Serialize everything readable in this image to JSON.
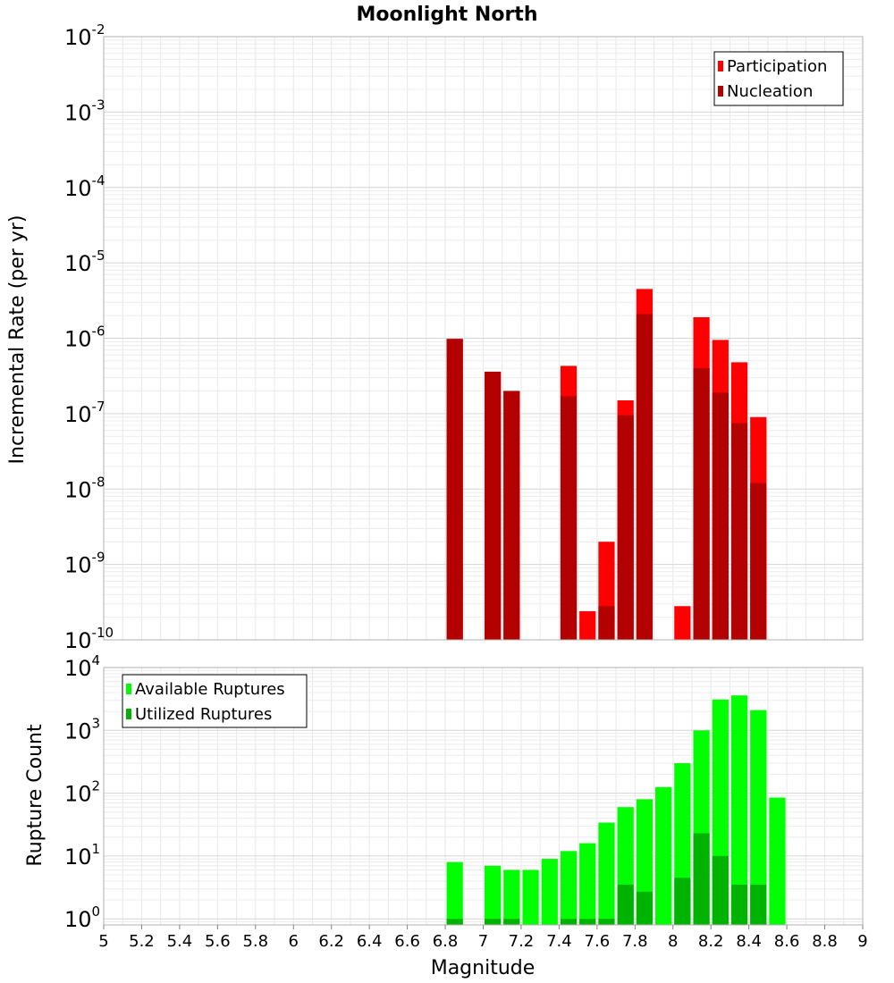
{
  "chart_data": [
    {
      "type": "bar",
      "title": "Moonlight North",
      "ylabel": "Incremental Rate (per yr)",
      "xlabel": "",
      "yscale": "log",
      "ylim": [
        1e-10,
        0.01
      ],
      "xlim": [
        5,
        9
      ],
      "bar_width": 0.1,
      "grid": true,
      "legend_position": "top-right",
      "ytick_exponents": [
        "-10",
        "-9",
        "-8",
        "-7",
        "-6",
        "-5",
        "-4",
        "-3",
        "-2"
      ],
      "ytick_base": "10",
      "series": [
        {
          "name": "Participation",
          "color": "#ff0000",
          "points": [
            {
              "x": 6.85,
              "y": 9.8e-07
            },
            {
              "x": 7.05,
              "y": 3.6e-07
            },
            {
              "x": 7.15,
              "y": 2e-07
            },
            {
              "x": 7.45,
              "y": 4.3e-07
            },
            {
              "x": 7.55,
              "y": 2.4e-10
            },
            {
              "x": 7.65,
              "y": 2e-09
            },
            {
              "x": 7.75,
              "y": 1.5e-07
            },
            {
              "x": 7.85,
              "y": 4.5e-06
            },
            {
              "x": 8.05,
              "y": 2.8e-10
            },
            {
              "x": 8.15,
              "y": 1.9e-06
            },
            {
              "x": 8.25,
              "y": 9.5e-07
            },
            {
              "x": 8.35,
              "y": 4.8e-07
            },
            {
              "x": 8.45,
              "y": 9e-08
            }
          ]
        },
        {
          "name": "Nucleation",
          "color": "#b30000",
          "points": [
            {
              "x": 6.85,
              "y": 9.8e-07
            },
            {
              "x": 7.05,
              "y": 3.6e-07
            },
            {
              "x": 7.15,
              "y": 2e-07
            },
            {
              "x": 7.45,
              "y": 1.7e-07
            },
            {
              "x": 7.65,
              "y": 2.8e-10
            },
            {
              "x": 7.75,
              "y": 9.5e-08
            },
            {
              "x": 7.85,
              "y": 2.1e-06
            },
            {
              "x": 8.15,
              "y": 4e-07
            },
            {
              "x": 8.25,
              "y": 1.9e-07
            },
            {
              "x": 8.35,
              "y": 7.5e-08
            },
            {
              "x": 8.45,
              "y": 1.2e-08
            }
          ]
        }
      ]
    },
    {
      "type": "bar",
      "title": "",
      "ylabel": "Rupture Count",
      "xlabel": "Magnitude",
      "yscale": "log",
      "ylim": [
        0.8,
        10000
      ],
      "xlim": [
        5,
        9
      ],
      "bar_width": 0.1,
      "grid": true,
      "legend_position": "top-left",
      "ytick_exponents": [
        "0",
        "1",
        "2",
        "3",
        "4"
      ],
      "ytick_base": "10",
      "xtick_labels": [
        "5",
        "5.2",
        "5.4",
        "5.6",
        "5.8",
        "6",
        "6.2",
        "6.4",
        "6.6",
        "6.8",
        "7",
        "7.2",
        "7.4",
        "7.6",
        "7.8",
        "8",
        "8.2",
        "8.4",
        "8.6",
        "8.8",
        "9"
      ],
      "series": [
        {
          "name": "Available Ruptures",
          "color": "#00ff00",
          "points": [
            {
              "x": 6.85,
              "y": 8
            },
            {
              "x": 7.05,
              "y": 7
            },
            {
              "x": 7.15,
              "y": 6
            },
            {
              "x": 7.25,
              "y": 6
            },
            {
              "x": 7.35,
              "y": 9
            },
            {
              "x": 7.45,
              "y": 12
            },
            {
              "x": 7.55,
              "y": 16
            },
            {
              "x": 7.65,
              "y": 34
            },
            {
              "x": 7.75,
              "y": 60
            },
            {
              "x": 7.85,
              "y": 80
            },
            {
              "x": 7.95,
              "y": 125
            },
            {
              "x": 8.05,
              "y": 300
            },
            {
              "x": 8.15,
              "y": 1000
            },
            {
              "x": 8.25,
              "y": 3100
            },
            {
              "x": 8.35,
              "y": 3600
            },
            {
              "x": 8.45,
              "y": 2100
            },
            {
              "x": 8.55,
              "y": 85
            }
          ]
        },
        {
          "name": "Utilized Ruptures",
          "color": "#00b300",
          "points": [
            {
              "x": 6.85,
              "y": 1
            },
            {
              "x": 7.05,
              "y": 1
            },
            {
              "x": 7.15,
              "y": 1
            },
            {
              "x": 7.45,
              "y": 1
            },
            {
              "x": 7.55,
              "y": 1
            },
            {
              "x": 7.65,
              "y": 1
            },
            {
              "x": 7.75,
              "y": 3.5
            },
            {
              "x": 7.85,
              "y": 2.7
            },
            {
              "x": 8.05,
              "y": 4.5
            },
            {
              "x": 8.15,
              "y": 23
            },
            {
              "x": 8.25,
              "y": 10
            },
            {
              "x": 8.35,
              "y": 3.5
            },
            {
              "x": 8.45,
              "y": 3.5
            }
          ]
        }
      ]
    }
  ]
}
